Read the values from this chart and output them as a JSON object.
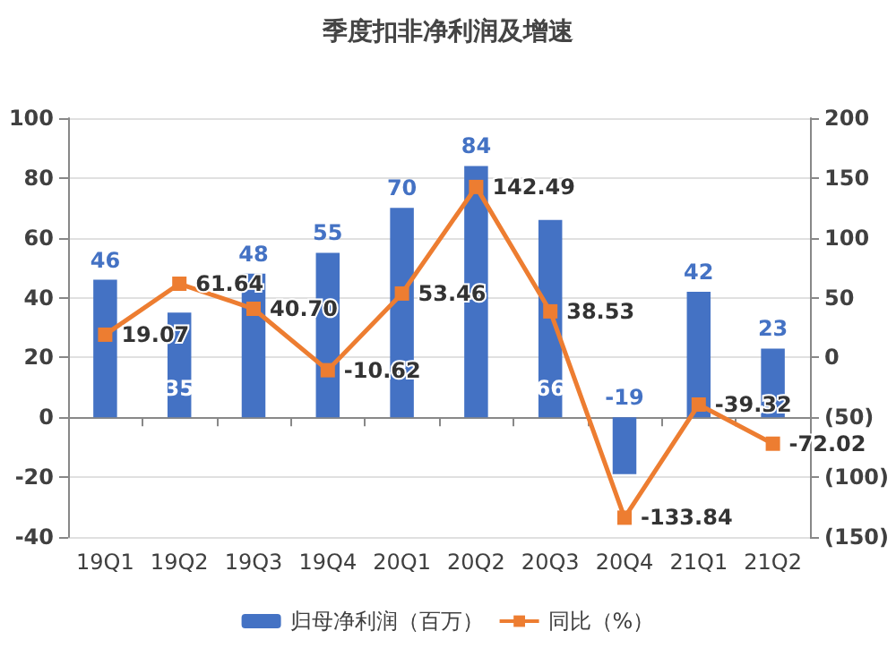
{
  "chart_data": {
    "type": "bar",
    "title": "季度扣非净利润及增速",
    "categories": [
      "19Q1",
      "19Q2",
      "19Q3",
      "19Q4",
      "20Q1",
      "20Q2",
      "20Q3",
      "20Q4",
      "21Q1",
      "21Q2"
    ],
    "series": [
      {
        "name": "归母净利润（百万）",
        "color": "#4472c4",
        "values": [
          46,
          35,
          48,
          55,
          70,
          84,
          66,
          -19,
          42,
          23
        ]
      },
      {
        "name": "同比（%）",
        "type": "line",
        "axis": "y2",
        "color": "#ed7d31",
        "values": [
          19.07,
          61.64,
          40.7,
          -10.62,
          53.46,
          142.49,
          38.53,
          -133.84,
          -39.32,
          -72.02
        ],
        "value_labels": [
          "19.07",
          "61.64",
          "40.70",
          "-10.62",
          "53.46",
          "142.49",
          "38.53",
          "-133.84",
          "-39.32",
          "-72.02"
        ]
      }
    ],
    "data_labels": true,
    "marker": "square",
    "grid": "y",
    "legend": "bottom",
    "ylim": [
      -40,
      100
    ],
    "yticks": [
      -40,
      -20,
      0,
      20,
      40,
      60,
      80,
      100
    ],
    "y2lim": [
      -150,
      200
    ],
    "y2ticks": [
      {
        "value": -150,
        "label": "(150)"
      },
      {
        "value": -100,
        "label": "(100)"
      },
      {
        "value": -50,
        "label": "(50)"
      },
      0,
      50,
      100,
      150,
      200
    ]
  }
}
